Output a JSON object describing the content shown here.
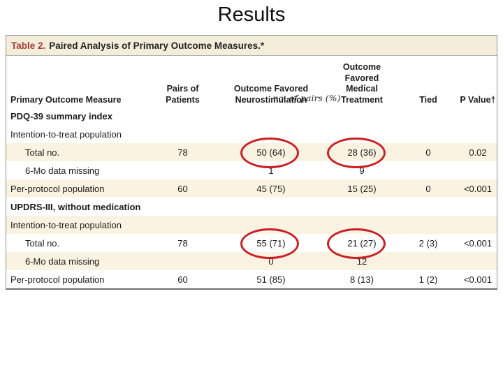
{
  "slide": {
    "title": "Results"
  },
  "table": {
    "caption": {
      "label": "Table 2.",
      "text": "Paired Analysis of Primary Outcome Measures.*"
    },
    "columns": {
      "measure": "Primary Outcome Measure",
      "pairs": "Pairs of Patients",
      "neuro": "Outcome Favored\nNeurostimulation",
      "med": "Outcome Favored\nMedical Treatment",
      "tied": "Tied",
      "pvalue": "P Value†"
    },
    "subheader": "no. of pairs (%)",
    "rows": [
      {
        "label": "PDQ-39 summary index",
        "pairs": "",
        "neuro": "",
        "med": "",
        "tied": "",
        "pvalue": ""
      },
      {
        "label": "Intention-to-treat population",
        "pairs": "",
        "neuro": "",
        "med": "",
        "tied": "",
        "pvalue": ""
      },
      {
        "label": "Total no.",
        "pairs": "78",
        "neuro": "50 (64)",
        "med": "28 (36)",
        "tied": "0",
        "pvalue": "0.02"
      },
      {
        "label": "6-Mo data missing",
        "pairs": "",
        "neuro": "1",
        "med": "9",
        "tied": "",
        "pvalue": ""
      },
      {
        "label": "Per-protocol population",
        "pairs": "60",
        "neuro": "45 (75)",
        "med": "15 (25)",
        "tied": "0",
        "pvalue": "<0.001"
      },
      {
        "label": "UPDRS-III, without medication",
        "pairs": "",
        "neuro": "",
        "med": "",
        "tied": "",
        "pvalue": ""
      },
      {
        "label": "Intention-to-treat population",
        "pairs": "",
        "neuro": "",
        "med": "",
        "tied": "",
        "pvalue": ""
      },
      {
        "label": "Total no.",
        "pairs": "78",
        "neuro": "55 (71)",
        "med": "21 (27)",
        "tied": "2 (3)",
        "pvalue": "<0.001"
      },
      {
        "label": "6-Mo data missing",
        "pairs": "",
        "neuro": "0",
        "med": "12",
        "tied": "",
        "pvalue": ""
      },
      {
        "label": "Per-protocol population",
        "pairs": "60",
        "neuro": "51 (85)",
        "med": "8 (13)",
        "tied": "1 (2)",
        "pvalue": "<0.001"
      }
    ]
  },
  "annotations": {
    "circled_values": [
      "50 (64)",
      "28 (36)",
      "55 (71)",
      "21 (27)"
    ]
  },
  "theme": {
    "titlebar_cream": "#f4edda",
    "row_cream": "#faf3e1",
    "caption_red": "#a43b38",
    "circle_red": "#c82127"
  }
}
